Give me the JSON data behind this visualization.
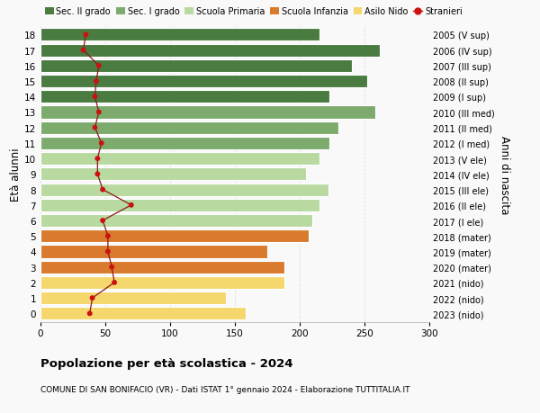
{
  "ages": [
    18,
    17,
    16,
    15,
    14,
    13,
    12,
    11,
    10,
    9,
    8,
    7,
    6,
    5,
    4,
    3,
    2,
    1,
    0
  ],
  "right_labels": [
    "2005 (V sup)",
    "2006 (IV sup)",
    "2007 (III sup)",
    "2008 (II sup)",
    "2009 (I sup)",
    "2010 (III med)",
    "2011 (II med)",
    "2012 (I med)",
    "2013 (V ele)",
    "2014 (IV ele)",
    "2015 (III ele)",
    "2016 (II ele)",
    "2017 (I ele)",
    "2018 (mater)",
    "2019 (mater)",
    "2020 (mater)",
    "2021 (nido)",
    "2022 (nido)",
    "2023 (nido)"
  ],
  "bar_values": [
    215,
    262,
    240,
    252,
    223,
    258,
    230,
    223,
    215,
    205,
    222,
    215,
    210,
    207,
    175,
    188,
    188,
    143,
    158
  ],
  "bar_colors": [
    "#4a7c41",
    "#4a7c41",
    "#4a7c41",
    "#4a7c41",
    "#4a7c41",
    "#7dab6e",
    "#7dab6e",
    "#7dab6e",
    "#b8d9a0",
    "#b8d9a0",
    "#b8d9a0",
    "#b8d9a0",
    "#b8d9a0",
    "#d97b2e",
    "#d97b2e",
    "#d97b2e",
    "#f5d76e",
    "#f5d76e",
    "#f5d76e"
  ],
  "stranieri_values": [
    35,
    33,
    45,
    43,
    42,
    45,
    42,
    47,
    44,
    44,
    48,
    70,
    48,
    52,
    52,
    55,
    57,
    40,
    38
  ],
  "legend_labels": [
    "Sec. II grado",
    "Sec. I grado",
    "Scuola Primaria",
    "Scuola Infanzia",
    "Asilo Nido",
    "Stranieri"
  ],
  "legend_colors": [
    "#4a7c41",
    "#7dab6e",
    "#b8d9a0",
    "#d97b2e",
    "#f5d76e",
    "#cc1111"
  ],
  "ylabel_left": "Età alunni",
  "ylabel_right": "Anni di nascita",
  "title": "Popolazione per età scolastica - 2024",
  "subtitle": "COMUNE DI SAN BONIFACIO (VR) - Dati ISTAT 1° gennaio 2024 - Elaborazione TUTTITALIA.IT",
  "xlim": [
    0,
    300
  ],
  "xticks": [
    0,
    50,
    100,
    150,
    200,
    250,
    300
  ],
  "background_color": "#f9f9f9",
  "grid_color": "#dddddd",
  "bar_height": 0.82
}
